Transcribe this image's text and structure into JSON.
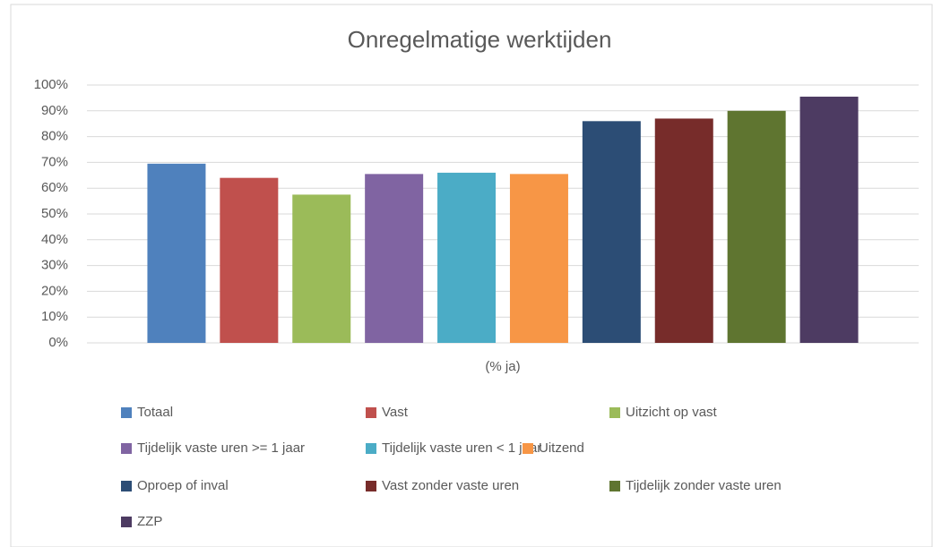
{
  "chart_data": {
    "type": "bar",
    "title": "Onregelmatige werktijden",
    "categories": [
      "(% ja)"
    ],
    "series": [
      {
        "name": "Totaal",
        "color": "#4f81bd",
        "values": [
          69.5
        ]
      },
      {
        "name": "Vast",
        "color": "#c0504d",
        "values": [
          64
        ]
      },
      {
        "name": "Uitzicht op vast",
        "color": "#9bbb59",
        "values": [
          57.5
        ]
      },
      {
        "name": "Tijdelijk vaste uren >= 1 jaar",
        "color": "#8064a2",
        "values": [
          65.5
        ]
      },
      {
        "name": "Tijdelijk vaste uren < 1 jaar",
        "color": "#4bacc6",
        "values": [
          66
        ]
      },
      {
        "name": "Uitzend",
        "color": "#f79646",
        "values": [
          65.5
        ]
      },
      {
        "name": "Oproep of inval",
        "color": "#2c4d75",
        "values": [
          86
        ]
      },
      {
        "name": "Vast zonder vaste uren",
        "color": "#772c2a",
        "values": [
          87
        ]
      },
      {
        "name": "Tijdelijk zonder vaste uren",
        "color": "#5f7530",
        "values": [
          90
        ]
      },
      {
        "name": "ZZP",
        "color": "#4d3b62",
        "values": [
          95.5
        ]
      }
    ],
    "ylim": [
      0,
      100
    ],
    "yticks": [
      {
        "value": 0,
        "label": "0%"
      },
      {
        "value": 10,
        "label": "10%"
      },
      {
        "value": 20,
        "label": "20%"
      },
      {
        "value": 30,
        "label": "30%"
      },
      {
        "value": 40,
        "label": "40%"
      },
      {
        "value": 50,
        "label": "50%"
      },
      {
        "value": 60,
        "label": "60%"
      },
      {
        "value": 70,
        "label": "70%"
      },
      {
        "value": 80,
        "label": "80%"
      },
      {
        "value": 90,
        "label": "90%"
      },
      {
        "value": 100,
        "label": "100%"
      }
    ],
    "grid": true,
    "legend": "bottom"
  }
}
